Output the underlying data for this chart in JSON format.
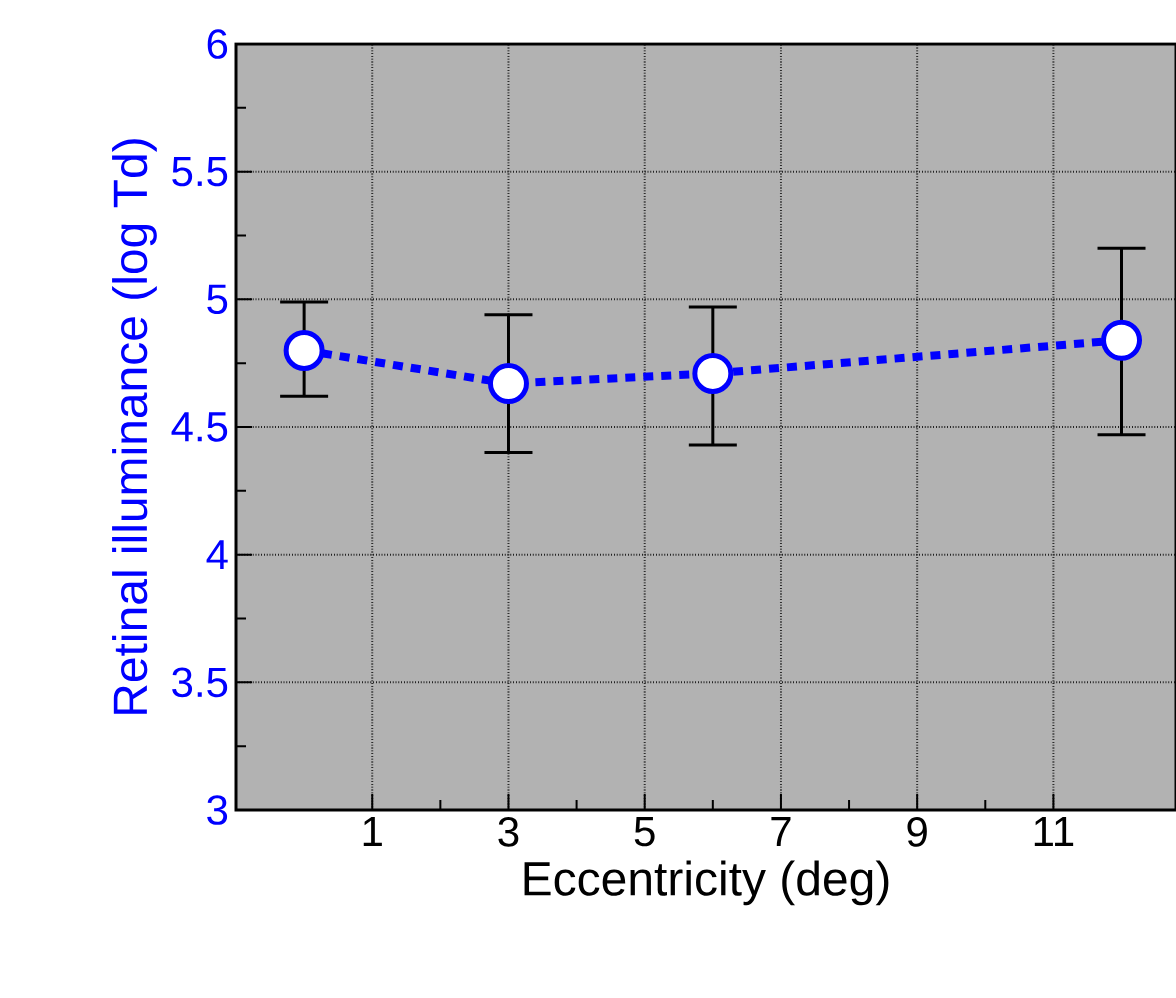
{
  "chart_data": {
    "type": "line",
    "xlabel": "Eccentricity (deg)",
    "ylabel": "Retinal illuminance (log Td)",
    "x": [
      0,
      3,
      6,
      12
    ],
    "series": [
      {
        "color": "#0000ff",
        "values": [
          4.8,
          4.67,
          4.71,
          4.84
        ],
        "errors": [
          [
            4.62,
            4.99
          ],
          [
            4.4,
            4.94
          ],
          [
            4.43,
            4.97
          ],
          [
            4.47,
            5.2
          ]
        ]
      }
    ],
    "xlim": [
      -1,
      12.8
    ],
    "xticks": [
      1,
      3,
      5,
      7,
      9,
      11
    ],
    "ylim": [
      3,
      6
    ],
    "yticks": [
      3,
      3.5,
      4,
      4.5,
      5,
      5.5,
      6
    ],
    "grid": true,
    "marker": "circle",
    "line_style": "dashed"
  }
}
